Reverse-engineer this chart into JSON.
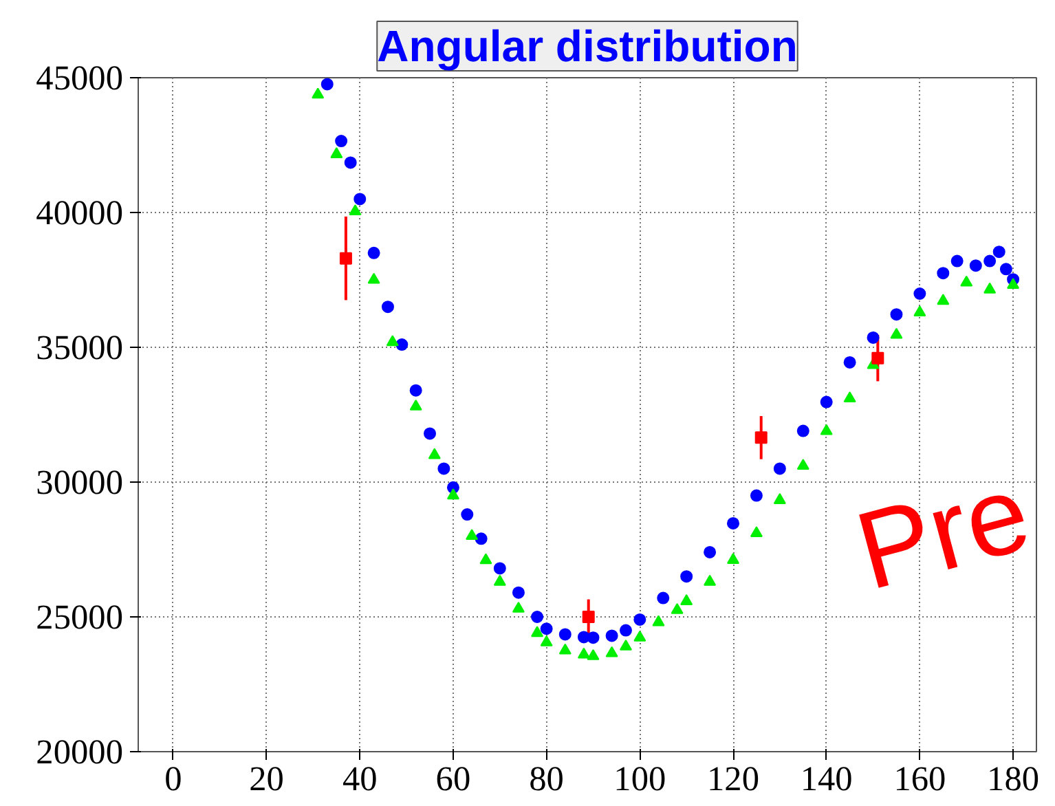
{
  "chart_data": {
    "type": "scatter",
    "title": "Angular distribution",
    "xlim": [
      -7.5,
      185
    ],
    "ylim": [
      20000,
      45000
    ],
    "xticks": [
      0,
      20,
      40,
      60,
      80,
      100,
      120,
      140,
      160,
      180
    ],
    "yticks": [
      20000,
      25000,
      30000,
      35000,
      40000,
      45000
    ],
    "grid": true,
    "series": [
      {
        "color": "#0000ff",
        "marker": "circle",
        "x": [
          33,
          36,
          38,
          40,
          43,
          46,
          49,
          52,
          55,
          58,
          60,
          63,
          66,
          70,
          74,
          78,
          80,
          84,
          88,
          90,
          94,
          97,
          100,
          105,
          110,
          115,
          120,
          125,
          130,
          135,
          140,
          145,
          150,
          155,
          160,
          165,
          168,
          172,
          175,
          177,
          178.5,
          180
        ],
        "values": [
          44760,
          42650,
          41850,
          40500,
          38500,
          36500,
          35100,
          33400,
          31800,
          30500,
          29800,
          28800,
          27900,
          26800,
          25900,
          25000,
          24560,
          24350,
          24250,
          24230,
          24300,
          24500,
          24900,
          25700,
          26500,
          27400,
          28470,
          29500,
          30500,
          31900,
          32970,
          34440,
          35360,
          36220,
          36990,
          37750,
          38200,
          38030,
          38200,
          38540,
          37900,
          37520
        ]
      },
      {
        "color": "#00ee00",
        "marker": "triangle",
        "x": [
          31,
          35,
          39,
          43,
          47,
          52,
          56,
          60,
          64,
          67,
          70,
          74,
          78,
          80,
          84,
          88,
          90,
          94,
          97,
          100,
          104,
          108,
          110,
          115,
          120,
          125,
          130,
          135,
          140,
          145,
          150,
          155,
          160,
          165,
          170,
          175,
          180
        ],
        "values": [
          44370,
          42160,
          40040,
          37500,
          35190,
          32800,
          31000,
          29500,
          28000,
          27100,
          26300,
          25300,
          24400,
          24050,
          23750,
          23600,
          23540,
          23650,
          23900,
          24230,
          24800,
          25250,
          25580,
          26300,
          27110,
          28100,
          29330,
          30600,
          31890,
          33100,
          34340,
          35460,
          36290,
          36720,
          37400,
          37140,
          37310
        ]
      },
      {
        "color": "#ff0000",
        "marker": "square",
        "x": [
          37,
          89,
          126,
          151
        ],
        "values": [
          38300,
          25000,
          31650,
          34600
        ],
        "errors": [
          1550,
          650,
          800,
          860
        ]
      }
    ],
    "annotations": [
      "Pre"
    ]
  }
}
